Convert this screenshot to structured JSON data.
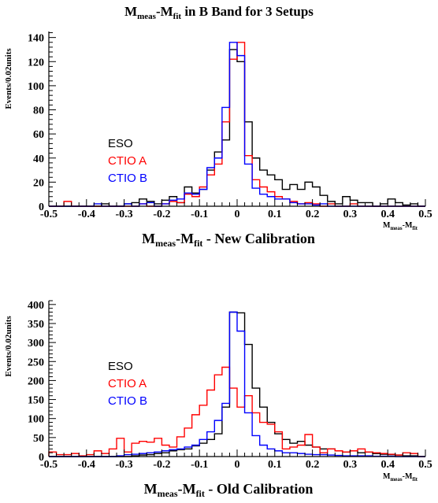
{
  "figure": {
    "title": "M",
    "title_sub": "meas",
    "title_mid": "-M",
    "title_sub2": "fit",
    "title_rest": " in B Band for 3 Setups"
  },
  "chart_data": [
    {
      "type": "histogram",
      "title": "",
      "xlabel_main": "M",
      "xlabel_sub1": "meas",
      "xlabel_mid": "-M",
      "xlabel_sub2": "fit",
      "xlabel_rest": " - New Calibration",
      "xunit_main": "M",
      "xunit_sub1": "meas",
      "xunit_mid": "-M",
      "xunit_sub2": "fit",
      "ylabel": "Events/0.02units",
      "xlim": [
        -0.5,
        0.5
      ],
      "ylim": [
        0,
        145
      ],
      "bin_width": 0.02,
      "xticks": [
        -0.5,
        -0.4,
        -0.3,
        -0.2,
        -0.1,
        0,
        0.1,
        0.2,
        0.3,
        0.4,
        0.5
      ],
      "xtick_labels": [
        "-0.5",
        "-0.4",
        "-0.3",
        "-0.2",
        "-0.1",
        "0",
        "0.1",
        "0.2",
        "0.3",
        "0.4",
        "0.5"
      ],
      "yticks": [
        0,
        20,
        40,
        60,
        80,
        100,
        120,
        140
      ],
      "ytick_labels": [
        "0",
        "20",
        "40",
        "60",
        "80",
        "100",
        "120",
        "140"
      ],
      "legend": {
        "placement": "left",
        "entries": [
          "ESO",
          "CTIO A",
          "CTIO B"
        ]
      },
      "series": [
        {
          "name": "ESO",
          "color": "#000000",
          "x_start": [
            -0.5,
            -0.48,
            -0.46,
            -0.44,
            -0.42,
            -0.4,
            -0.38,
            -0.36,
            -0.34,
            -0.32,
            -0.3,
            -0.28,
            -0.26,
            -0.24,
            -0.22,
            -0.2,
            -0.18,
            -0.16,
            -0.14,
            -0.12,
            -0.1,
            -0.08,
            -0.06,
            -0.04,
            -0.02,
            0,
            0.02,
            0.04,
            0.06,
            0.08,
            0.1,
            0.12,
            0.14,
            0.16,
            0.18,
            0.2,
            0.22,
            0.24,
            0.26,
            0.28,
            0.3,
            0.32,
            0.34,
            0.36,
            0.38,
            0.4,
            0.42,
            0.44,
            0.46,
            0.48
          ],
          "values": [
            0,
            0,
            0,
            0,
            0,
            0,
            0,
            2,
            0,
            0,
            2,
            3,
            6,
            4,
            2,
            5,
            8,
            3,
            16,
            11,
            14,
            30,
            45,
            55,
            130,
            120,
            70,
            40,
            30,
            26,
            22,
            14,
            18,
            14,
            20,
            16,
            9,
            4,
            2,
            8,
            5,
            3,
            3,
            0,
            2,
            6,
            3,
            1,
            2,
            0
          ]
        },
        {
          "name": "CTIO A",
          "color": "#ff0000",
          "x_start": [
            -0.5,
            -0.48,
            -0.46,
            -0.44,
            -0.42,
            -0.4,
            -0.38,
            -0.36,
            -0.34,
            -0.32,
            -0.3,
            -0.28,
            -0.26,
            -0.24,
            -0.22,
            -0.2,
            -0.18,
            -0.16,
            -0.14,
            -0.12,
            -0.1,
            -0.08,
            -0.06,
            -0.04,
            -0.02,
            0,
            0.02,
            0.04,
            0.06,
            0.08,
            0.1,
            0.12,
            0.14,
            0.16,
            0.18,
            0.2,
            0.22,
            0.24,
            0.26,
            0.28,
            0.3,
            0.32,
            0.34,
            0.36,
            0.38,
            0.4,
            0.42,
            0.44,
            0.46,
            0.48
          ],
          "values": [
            0,
            0,
            4,
            0,
            0,
            0,
            0,
            0,
            0,
            0,
            0,
            0,
            2,
            0,
            0,
            2,
            4,
            3,
            10,
            8,
            16,
            26,
            35,
            70,
            122,
            136,
            42,
            22,
            16,
            12,
            8,
            6,
            4,
            2,
            3,
            2,
            0,
            2,
            0,
            0,
            2,
            0,
            0,
            0,
            0,
            0,
            0,
            0,
            0,
            0
          ]
        },
        {
          "name": "CTIO B",
          "color": "#0000ff",
          "x_start": [
            -0.5,
            -0.48,
            -0.46,
            -0.44,
            -0.42,
            -0.4,
            -0.38,
            -0.36,
            -0.34,
            -0.32,
            -0.3,
            -0.28,
            -0.26,
            -0.24,
            -0.22,
            -0.2,
            -0.18,
            -0.16,
            -0.14,
            -0.12,
            -0.1,
            -0.08,
            -0.06,
            -0.04,
            -0.02,
            0,
            0.02,
            0.04,
            0.06,
            0.08,
            0.1,
            0.12,
            0.14,
            0.16,
            0.18,
            0.2,
            0.22,
            0.24,
            0.26,
            0.28,
            0.3,
            0.32,
            0.34,
            0.36,
            0.38,
            0.4,
            0.42,
            0.44,
            0.46,
            0.48
          ],
          "values": [
            0,
            0,
            0,
            0,
            0,
            0,
            2,
            0,
            0,
            0,
            2,
            0,
            2,
            3,
            0,
            2,
            5,
            6,
            11,
            10,
            14,
            32,
            40,
            82,
            136,
            125,
            35,
            15,
            10,
            8,
            6,
            6,
            3,
            2,
            2,
            1,
            2,
            0,
            0,
            0,
            0,
            0,
            0,
            0,
            0,
            0,
            0,
            0,
            0,
            0
          ]
        }
      ]
    },
    {
      "type": "histogram",
      "title": "",
      "xlabel_main": "M",
      "xlabel_sub1": "meas",
      "xlabel_mid": "-M",
      "xlabel_sub2": "fit",
      "xlabel_rest": " - Old Calibration",
      "xunit_main": "M",
      "xunit_sub1": "meas",
      "xunit_mid": "-M",
      "xunit_sub2": "fit",
      "ylabel": "Events/0.02units",
      "xlim": [
        -0.5,
        0.5
      ],
      "ylim": [
        0,
        410
      ],
      "bin_width": 0.02,
      "xticks": [
        -0.5,
        -0.4,
        -0.3,
        -0.2,
        -0.1,
        0,
        0.1,
        0.2,
        0.3,
        0.4,
        0.5
      ],
      "xtick_labels": [
        "-0.5",
        "-0.4",
        "-0.3",
        "-0.2",
        "-0.1",
        "0",
        "0.1",
        "0.2",
        "0.3",
        "0.4",
        "0.5"
      ],
      "yticks": [
        0,
        50,
        100,
        150,
        200,
        250,
        300,
        350,
        400
      ],
      "ytick_labels": [
        "0",
        "50",
        "100",
        "150",
        "200",
        "250",
        "300",
        "350",
        "400"
      ],
      "legend": {
        "placement": "left",
        "entries": [
          "ESO",
          "CTIO A",
          "CTIO B"
        ]
      },
      "series": [
        {
          "name": "ESO",
          "color": "#000000",
          "x_start": [
            -0.5,
            -0.48,
            -0.46,
            -0.44,
            -0.42,
            -0.4,
            -0.38,
            -0.36,
            -0.34,
            -0.32,
            -0.3,
            -0.28,
            -0.26,
            -0.24,
            -0.22,
            -0.2,
            -0.18,
            -0.16,
            -0.14,
            -0.12,
            -0.1,
            -0.08,
            -0.06,
            -0.04,
            -0.02,
            0,
            0.02,
            0.04,
            0.06,
            0.08,
            0.1,
            0.12,
            0.14,
            0.16,
            0.18,
            0.2,
            0.22,
            0.24,
            0.26,
            0.28,
            0.3,
            0.32,
            0.34,
            0.36,
            0.38,
            0.4,
            0.42,
            0.44,
            0.46,
            0.48
          ],
          "values": [
            0,
            0,
            0,
            0,
            0,
            0,
            0,
            0,
            0,
            0,
            0,
            2,
            4,
            5,
            8,
            10,
            15,
            18,
            20,
            28,
            35,
            45,
            60,
            130,
            380,
            378,
            295,
            180,
            130,
            90,
            60,
            45,
            35,
            40,
            30,
            25,
            20,
            20,
            15,
            12,
            15,
            10,
            12,
            8,
            6,
            5,
            4,
            2,
            2,
            0
          ]
        },
        {
          "name": "CTIO A",
          "color": "#ff0000",
          "x_start": [
            -0.5,
            -0.48,
            -0.46,
            -0.44,
            -0.42,
            -0.4,
            -0.38,
            -0.36,
            -0.34,
            -0.32,
            -0.3,
            -0.28,
            -0.26,
            -0.24,
            -0.22,
            -0.2,
            -0.18,
            -0.16,
            -0.14,
            -0.12,
            -0.1,
            -0.08,
            -0.06,
            -0.04,
            -0.02,
            0,
            0.02,
            0.04,
            0.06,
            0.08,
            0.1,
            0.12,
            0.14,
            0.16,
            0.18,
            0.2,
            0.22,
            0.24,
            0.26,
            0.28,
            0.3,
            0.32,
            0.34,
            0.36,
            0.38,
            0.4,
            0.42,
            0.44,
            0.46,
            0.48
          ],
          "values": [
            12,
            5,
            5,
            8,
            2,
            5,
            15,
            8,
            20,
            48,
            12,
            35,
            40,
            38,
            48,
            30,
            25,
            52,
            75,
            110,
            135,
            175,
            215,
            235,
            180,
            130,
            160,
            115,
            90,
            85,
            65,
            20,
            25,
            30,
            58,
            25,
            10,
            20,
            15,
            12,
            15,
            20,
            12,
            10,
            8,
            6,
            4,
            10,
            8,
            0
          ]
        },
        {
          "name": "CTIO B",
          "color": "#0000ff",
          "x_start": [
            -0.5,
            -0.48,
            -0.46,
            -0.44,
            -0.42,
            -0.4,
            -0.38,
            -0.36,
            -0.34,
            -0.32,
            -0.3,
            -0.28,
            -0.26,
            -0.24,
            -0.22,
            -0.2,
            -0.18,
            -0.16,
            -0.14,
            -0.12,
            -0.1,
            -0.08,
            -0.06,
            -0.04,
            -0.02,
            0,
            0.02,
            0.04,
            0.06,
            0.08,
            0.1,
            0.12,
            0.14,
            0.16,
            0.18,
            0.2,
            0.22,
            0.24,
            0.26,
            0.28,
            0.3,
            0.32,
            0.34,
            0.36,
            0.38,
            0.4,
            0.42,
            0.44,
            0.46,
            0.48
          ],
          "values": [
            0,
            0,
            0,
            0,
            0,
            0,
            0,
            0,
            0,
            2,
            5,
            6,
            8,
            10,
            12,
            15,
            18,
            20,
            25,
            30,
            45,
            65,
            95,
            140,
            380,
            330,
            115,
            55,
            30,
            20,
            15,
            10,
            10,
            8,
            6,
            5,
            5,
            4,
            3,
            2,
            2,
            2,
            2,
            1,
            1,
            1,
            0,
            0,
            0,
            0
          ]
        }
      ]
    }
  ]
}
